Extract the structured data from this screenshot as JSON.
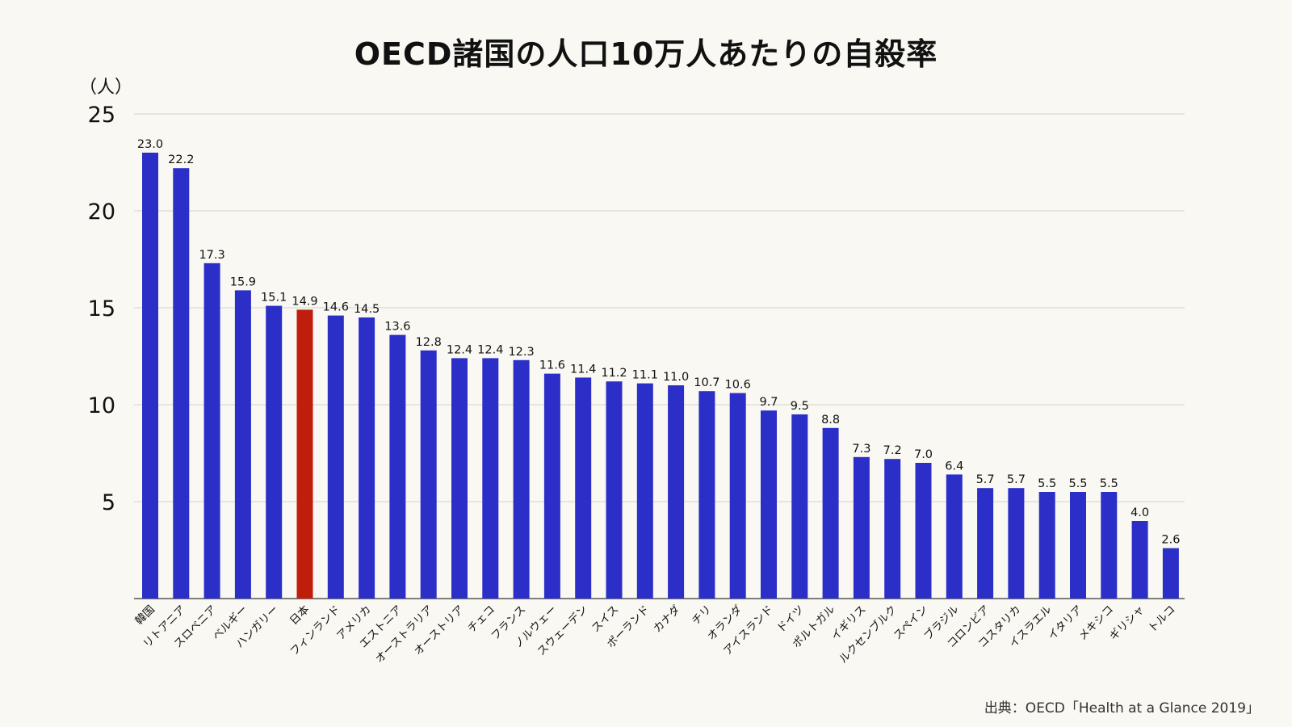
{
  "chart_data": {
    "type": "bar",
    "title": "OECD諸国の人口10万人あたりの自殺率",
    "ylabel": "（人）",
    "ylim": [
      0,
      25
    ],
    "yticks": [
      5,
      10,
      15,
      20,
      25
    ],
    "grid": true,
    "categories": [
      "韓国",
      "リトアニア",
      "スロベニア",
      "ベルギー",
      "ハンガリー",
      "日本",
      "フィンランド",
      "アメリカ",
      "エストニア",
      "オーストラリア",
      "オーストリア",
      "チェコ",
      "フランス",
      "ノルウェー",
      "スウェーデン",
      "スイス",
      "ポーランド",
      "カナダ",
      "チリ",
      "オランダ",
      "アイスランド",
      "ドイツ",
      "ポルトガル",
      "イギリス",
      "ルクセンブルク",
      "スペイン",
      "ブラジル",
      "コロンビア",
      "コスタリカ",
      "イスラエル",
      "イタリア",
      "メキシコ",
      "ギリシャ",
      "トルコ"
    ],
    "values": [
      23.0,
      22.2,
      17.3,
      15.9,
      15.1,
      14.9,
      14.6,
      14.5,
      13.6,
      12.8,
      12.4,
      12.4,
      12.3,
      11.6,
      11.4,
      11.2,
      11.1,
      11.0,
      10.7,
      10.6,
      9.7,
      9.5,
      8.8,
      7.3,
      7.2,
      7.0,
      6.4,
      5.7,
      5.7,
      5.5,
      5.5,
      5.5,
      4.0,
      2.6
    ],
    "highlight_category": "日本",
    "colors": {
      "bar": "#2b2fc7",
      "highlight": "#c01e0c",
      "grid": "#d2d2cc",
      "axis": "#555555"
    }
  },
  "source": "出典：OECD「Health at a Glance 2019」"
}
